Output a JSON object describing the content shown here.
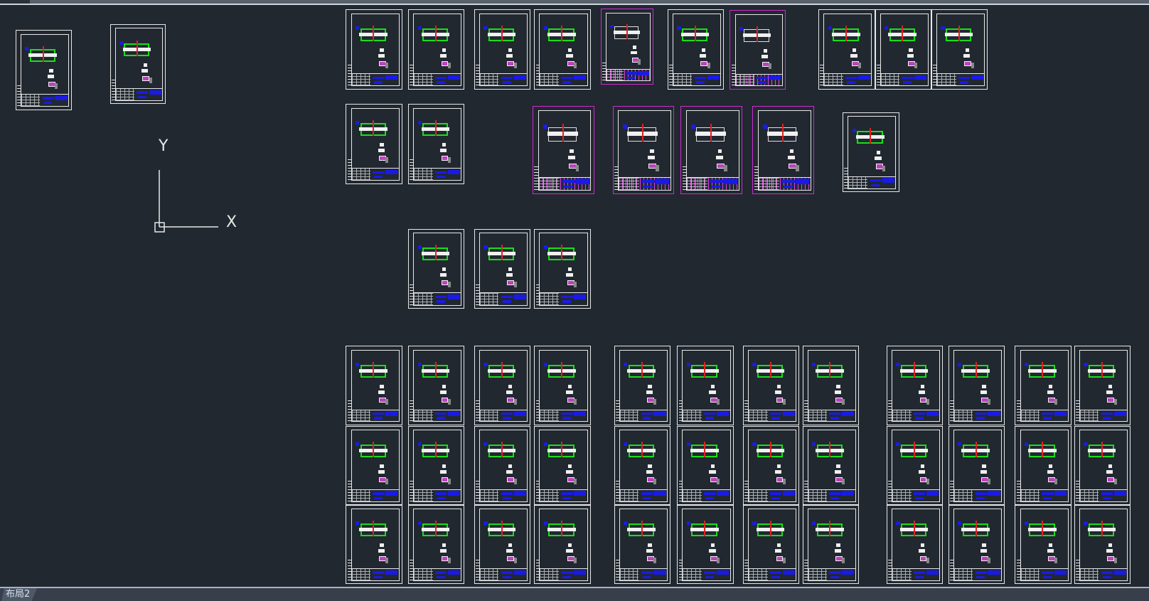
{
  "layout_tabs": [
    {
      "label": "布局2",
      "active": true
    }
  ],
  "ucs": {
    "x_label": "X",
    "y_label": "Y"
  },
  "colors": {
    "background": "#212830",
    "sheet_frame": "#e8e8e8",
    "selected_frame": "#d02bd0",
    "geometry": "#18e018",
    "title_block": "#1a1ae6",
    "centerline": "#e02020"
  }
}
